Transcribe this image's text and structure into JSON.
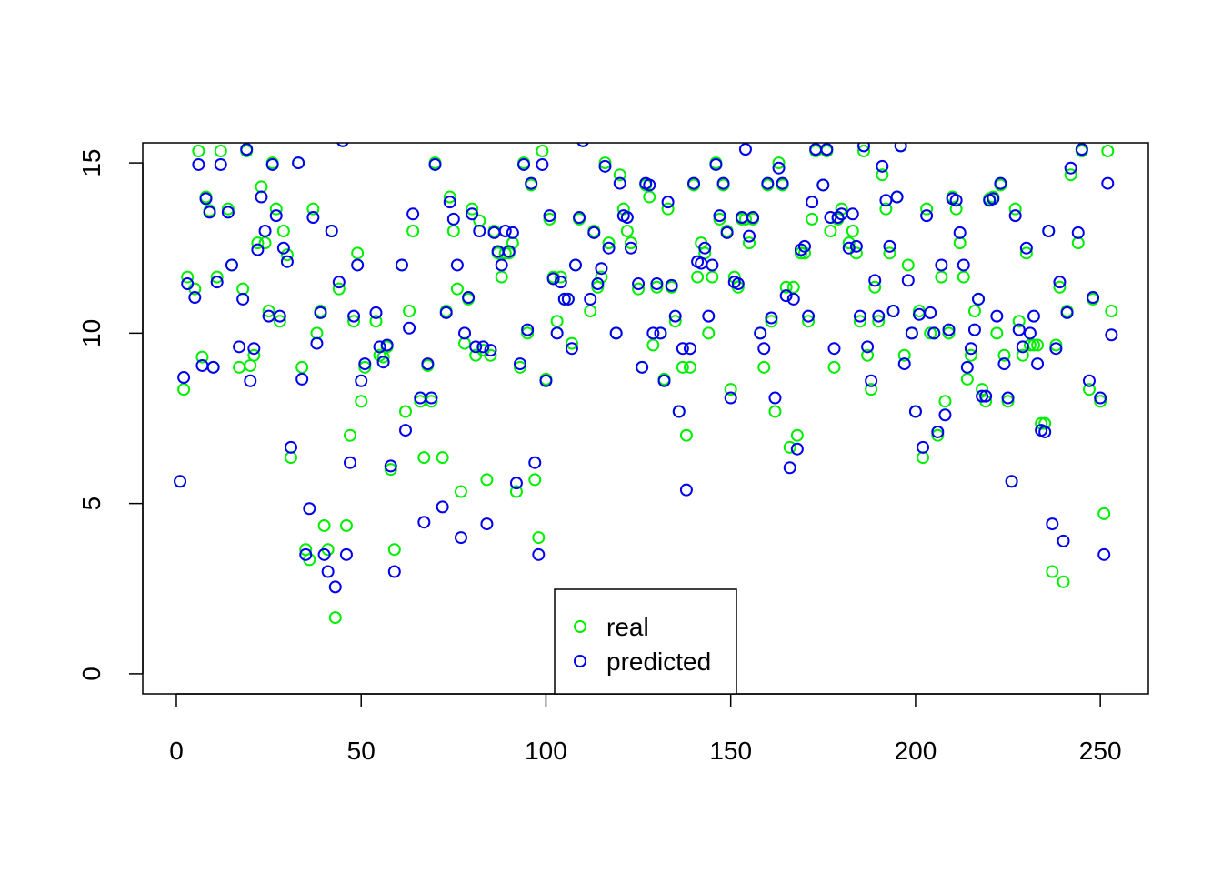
{
  "chart_data": {
    "type": "scatter",
    "x": [
      1,
      2,
      3,
      5,
      6,
      7,
      8,
      9,
      10,
      11,
      12,
      14,
      15,
      17,
      18,
      19,
      20,
      21,
      22,
      23,
      24,
      25,
      26,
      27,
      28,
      29,
      30,
      31,
      33,
      34,
      35,
      36,
      37,
      38,
      39,
      40,
      41,
      42,
      43,
      44,
      45,
      46,
      47,
      48,
      49,
      50,
      51,
      54,
      55,
      56,
      57,
      58,
      59,
      61,
      62,
      63,
      64,
      66,
      67,
      68,
      69,
      70,
      72,
      73,
      74,
      75,
      76,
      77,
      78,
      79,
      80,
      81,
      82,
      83,
      84,
      85,
      86,
      87,
      88,
      89,
      90,
      91,
      92,
      93,
      94,
      95,
      96,
      97,
      98,
      99,
      100,
      101,
      102,
      103,
      104,
      105,
      106,
      107,
      108,
      109,
      110,
      112,
      113,
      114,
      115,
      116,
      117,
      119,
      120,
      121,
      122,
      123,
      125,
      126,
      127,
      128,
      129,
      130,
      131,
      132,
      133,
      134,
      135,
      136,
      137,
      138,
      139,
      140,
      141,
      142,
      143,
      144,
      145,
      146,
      147,
      148,
      149,
      150,
      151,
      152,
      153,
      154,
      155,
      156,
      158,
      159,
      160,
      161,
      162,
      163,
      164,
      165,
      166,
      167,
      168,
      169,
      170,
      171,
      172,
      173,
      175,
      176,
      177,
      178,
      179,
      180,
      182,
      183,
      184,
      185,
      186,
      187,
      188,
      189,
      190,
      191,
      192,
      193,
      194,
      195,
      196,
      197,
      198,
      199,
      200,
      201,
      202,
      203,
      204,
      205,
      206,
      207,
      208,
      209,
      210,
      211,
      212,
      213,
      214,
      215,
      216,
      217,
      218,
      219,
      220,
      221,
      222,
      223,
      224,
      225,
      226,
      227,
      228,
      229,
      230,
      231,
      232,
      233,
      234,
      235,
      236,
      237,
      238,
      239,
      240,
      241,
      242,
      244,
      245,
      247,
      248,
      250,
      251,
      252,
      253
    ],
    "series": [
      {
        "name": "real",
        "color": "#00ee00",
        "values": [
          5.65,
          8.35,
          11.65,
          11.3,
          15.35,
          9.3,
          14.0,
          13.6,
          9.0,
          11.65,
          15.35,
          13.65,
          12.0,
          9.0,
          11.3,
          15.35,
          9.05,
          9.35,
          12.65,
          14.3,
          12.65,
          10.65,
          15.0,
          13.65,
          10.35,
          13.0,
          12.3,
          6.35,
          15.0,
          9.0,
          3.65,
          3.35,
          13.65,
          10.0,
          10.65,
          4.35,
          3.65,
          13.0,
          1.65,
          11.3,
          15.65,
          4.35,
          7.0,
          10.35,
          12.35,
          8.0,
          9.0,
          10.35,
          9.35,
          9.3,
          9.6,
          6.0,
          3.65,
          12.0,
          7.7,
          10.65,
          13.0,
          8.0,
          6.35,
          9.05,
          8.0,
          15.0,
          6.35,
          10.65,
          14.0,
          13.0,
          11.3,
          5.35,
          9.7,
          11.0,
          13.65,
          9.35,
          13.3,
          9.5,
          5.7,
          9.35,
          13.0,
          12.35,
          11.65,
          12.35,
          12.35,
          12.65,
          5.35,
          9.0,
          15.0,
          10.0,
          14.35,
          5.7,
          4.0,
          15.35,
          8.65,
          13.35,
          11.65,
          10.35,
          11.65,
          11.0,
          11.0,
          9.7,
          12.0,
          13.35,
          15.65,
          10.65,
          13.0,
          11.35,
          11.65,
          15.0,
          12.65,
          10.0,
          14.65,
          13.65,
          13.0,
          12.65,
          11.3,
          9.0,
          14.35,
          14.0,
          9.65,
          11.35,
          10.0,
          8.65,
          13.65,
          11.35,
          10.35,
          7.7,
          9.0,
          7.0,
          9.0,
          14.35,
          11.65,
          12.65,
          12.35,
          10.0,
          11.65,
          15.0,
          13.35,
          14.35,
          13.0,
          8.35,
          11.65,
          11.35,
          13.35,
          13.35,
          12.65,
          13.35,
          10.0,
          9.0,
          14.35,
          10.35,
          7.7,
          15.0,
          14.35,
          11.35,
          6.65,
          11.35,
          7.0,
          12.35,
          12.35,
          10.35,
          13.35,
          15.35,
          14.35,
          15.35,
          13.0,
          9.0,
          13.35,
          13.65,
          12.65,
          13.0,
          12.35,
          10.35,
          15.35,
          9.35,
          8.35,
          11.35,
          10.35,
          14.65,
          13.65,
          12.35,
          10.65,
          14.0,
          15.5,
          9.35,
          12.0,
          10.0,
          7.7,
          10.65,
          6.35,
          13.65,
          10.0,
          10.0,
          7.0,
          11.65,
          8.0,
          10.0,
          14.0,
          13.65,
          12.65,
          11.65,
          8.65,
          9.35,
          10.65,
          11.0,
          8.35,
          8.0,
          13.95,
          14.0,
          10.0,
          14.35,
          9.35,
          8.0,
          5.65,
          13.65,
          10.35,
          9.35,
          12.35,
          9.65,
          9.65,
          9.65,
          7.35,
          7.35,
          13.0,
          3.0,
          9.65,
          11.35,
          2.7,
          10.65,
          14.65,
          12.65,
          15.35,
          8.35,
          11.0,
          8.0,
          4.7,
          15.35,
          10.65
        ]
      },
      {
        "name": "predicted",
        "color": "#0000ee",
        "values": [
          5.65,
          8.7,
          11.45,
          11.05,
          14.95,
          9.05,
          13.95,
          13.55,
          9.0,
          11.5,
          14.95,
          13.55,
          12.0,
          9.6,
          11.0,
          15.4,
          8.6,
          9.55,
          12.45,
          14.0,
          13.0,
          10.5,
          14.95,
          13.45,
          10.5,
          12.5,
          12.1,
          6.65,
          15.0,
          8.65,
          3.5,
          4.85,
          13.4,
          9.7,
          10.6,
          3.5,
          3.0,
          13.0,
          2.55,
          11.5,
          15.65,
          3.5,
          6.2,
          10.5,
          12.0,
          8.6,
          9.1,
          10.6,
          9.6,
          9.15,
          9.65,
          6.1,
          3.0,
          12.0,
          7.15,
          10.15,
          13.5,
          8.1,
          4.45,
          9.1,
          8.1,
          14.95,
          4.9,
          10.6,
          13.85,
          13.35,
          12.0,
          4.0,
          10.0,
          11.05,
          13.5,
          9.6,
          13.0,
          9.6,
          4.4,
          9.5,
          12.95,
          12.4,
          12.0,
          13.0,
          12.4,
          12.95,
          5.6,
          9.1,
          14.95,
          10.1,
          14.4,
          6.2,
          3.5,
          14.95,
          8.6,
          13.45,
          11.6,
          10.0,
          11.5,
          11.0,
          11.0,
          9.55,
          12.0,
          13.4,
          15.65,
          11.0,
          12.95,
          11.45,
          11.9,
          14.9,
          12.5,
          10.0,
          14.4,
          13.45,
          13.4,
          12.5,
          11.45,
          9.0,
          14.4,
          14.35,
          10.0,
          11.45,
          10.0,
          8.6,
          13.85,
          11.4,
          10.5,
          7.7,
          9.55,
          5.4,
          9.55,
          14.4,
          12.1,
          12.05,
          12.5,
          10.5,
          12.0,
          14.95,
          13.45,
          14.4,
          12.95,
          8.1,
          11.5,
          11.45,
          13.4,
          15.4,
          12.85,
          13.4,
          10.0,
          9.55,
          14.4,
          10.45,
          8.1,
          14.85,
          14.4,
          11.1,
          6.05,
          11.0,
          6.6,
          12.45,
          12.55,
          10.5,
          13.85,
          15.4,
          14.35,
          15.4,
          13.4,
          9.55,
          13.4,
          13.5,
          12.5,
          13.5,
          12.55,
          10.5,
          15.5,
          9.6,
          8.6,
          11.55,
          10.5,
          14.9,
          13.9,
          12.55,
          10.65,
          14.0,
          15.5,
          9.1,
          11.55,
          10.0,
          7.7,
          10.55,
          6.65,
          13.45,
          10.6,
          10.0,
          7.1,
          12.0,
          7.6,
          10.1,
          13.95,
          13.9,
          12.95,
          12.0,
          9.0,
          9.55,
          10.1,
          11.0,
          8.15,
          8.15,
          13.9,
          13.95,
          10.5,
          14.4,
          9.1,
          8.1,
          5.65,
          13.45,
          10.1,
          9.6,
          12.5,
          10.0,
          10.5,
          9.1,
          7.15,
          7.1,
          13.0,
          4.4,
          9.55,
          11.5,
          3.9,
          10.6,
          14.85,
          12.95,
          15.4,
          8.6,
          11.05,
          8.1,
          3.5,
          14.4,
          9.95
        ]
      }
    ],
    "xlim": [
      -9.1,
      263
    ],
    "ylim": [
      -0.59,
      15.59
    ],
    "xticks": [
      0,
      50,
      100,
      150,
      200,
      250
    ],
    "yticks": [
      0,
      5,
      10,
      15
    ],
    "legend": "bottom"
  }
}
